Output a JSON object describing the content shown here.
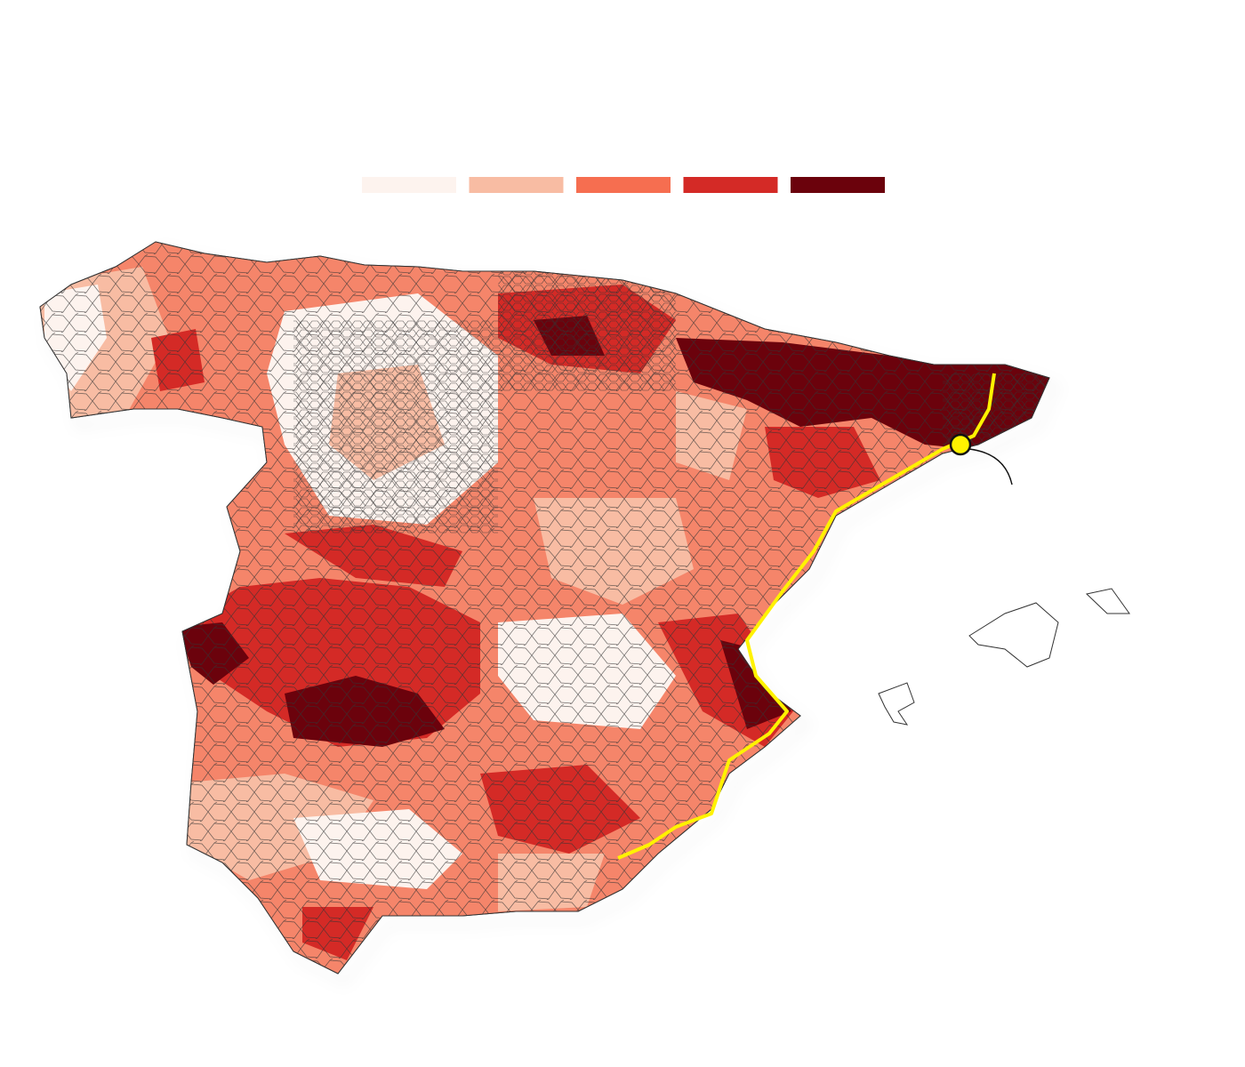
{
  "legend": {
    "colors": [
      "#fdf3ee",
      "#f8bca3",
      "#f66e50",
      "#d42a26",
      "#6b020c"
    ]
  }
}
